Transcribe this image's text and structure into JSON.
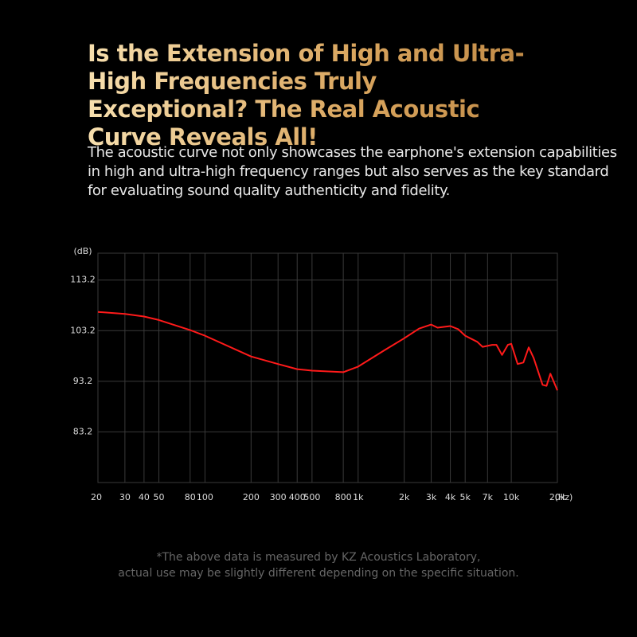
{
  "header": {
    "title": "Is the Extension of High and Ultra-High Frequencies Truly Exceptional? The Real Acoustic Curve Reveals All!",
    "subtitle": "The acoustic curve not only showcases the earphone's extension capabilities in high and ultra-high frequency ranges but also serves as the key standard for evaluating sound quality authenticity and fidelity."
  },
  "chart_data": {
    "type": "line",
    "xlog": true,
    "grid": true,
    "y_unit": "(dB)",
    "x_unit": "(Hz)",
    "x": [
      20,
      30,
      40,
      50,
      80,
      100,
      200,
      300,
      400,
      500,
      800,
      1000,
      1500,
      2000,
      2500,
      3000,
      3300,
      4000,
      4500,
      5000,
      6000,
      6500,
      7500,
      8000,
      8700,
      9500,
      10000,
      11000,
      12000,
      13000,
      14000,
      16000,
      17000,
      18000,
      20000
    ],
    "series": [
      {
        "color": "#ff1a1a",
        "values": [
          106.9,
          106.5,
          106.0,
          105.3,
          103.3,
          102.2,
          98.1,
          96.6,
          95.6,
          95.3,
          95.0,
          96.1,
          99.4,
          101.7,
          103.6,
          104.4,
          103.8,
          104.1,
          103.5,
          102.2,
          101.0,
          100.0,
          100.4,
          100.4,
          98.4,
          100.4,
          100.6,
          96.6,
          96.9,
          99.9,
          97.8,
          92.5,
          92.3,
          94.7,
          91.4
        ]
      }
    ],
    "xlim": [
      20,
      20000
    ],
    "ylim": [
      73.2,
      118.5
    ],
    "xticks": [
      20,
      30,
      40,
      50,
      80,
      100,
      200,
      300,
      400,
      500,
      800,
      {
        "value": 1000,
        "label": "1k"
      },
      {
        "value": 2000,
        "label": "2k"
      },
      {
        "value": 3000,
        "label": "3k"
      },
      {
        "value": 4000,
        "label": "4k"
      },
      {
        "value": 5000,
        "label": "5k"
      },
      {
        "value": 7000,
        "label": "7k"
      },
      {
        "value": 10000,
        "label": "10k"
      },
      {
        "value": 20000,
        "label": "20k"
      }
    ],
    "yticks": [
      83.2,
      93.2,
      103.2,
      113.2
    ]
  },
  "footnote": [
    "*The above data is measured by KZ Acoustics Laboratory,",
    "actual use may be slightly different depending on the specific situation."
  ]
}
